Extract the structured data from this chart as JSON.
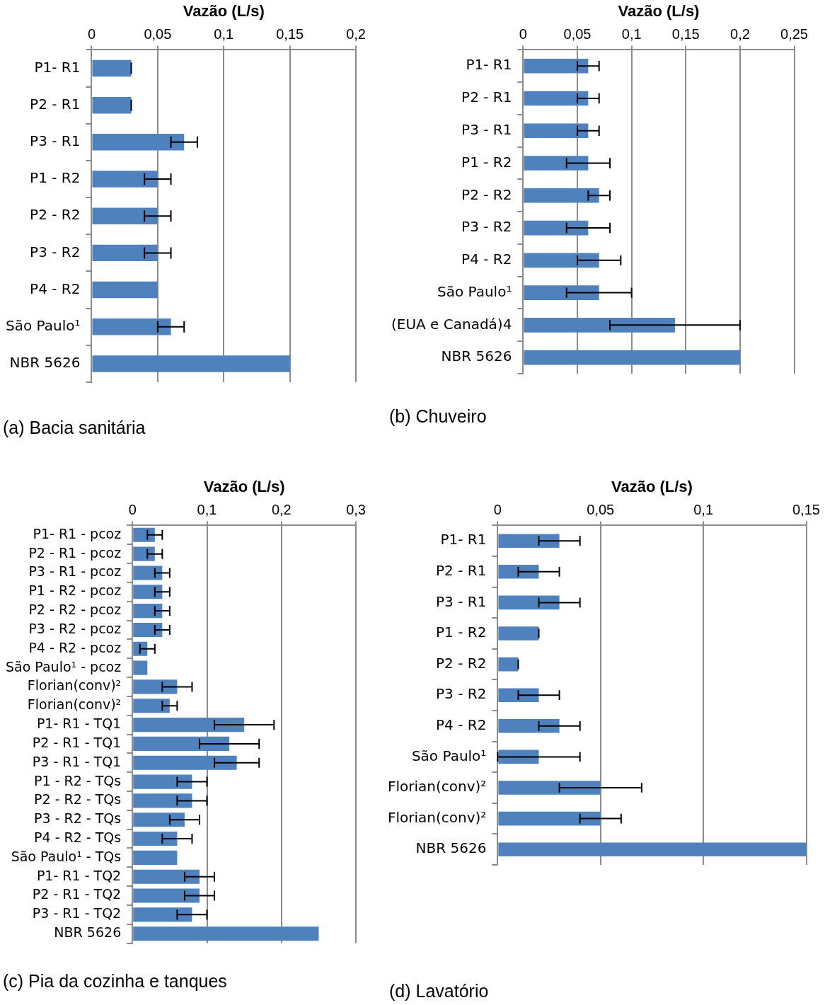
{
  "chart_data": [
    {
      "type": "bar",
      "orientation": "horizontal",
      "xlabel": "Vazão (L/s)",
      "annotations": [
        "(a) Bacia sanitária"
      ],
      "categories": [
        "P1- R1",
        "P2 - R1",
        "P3 - R1",
        "P1 - R2",
        "P2 - R2",
        "P3 - R2",
        "P4 - R2",
        "São Paulo¹",
        "NBR 5626"
      ],
      "values": [
        0.03,
        0.03,
        0.07,
        0.05,
        0.05,
        0.05,
        0.05,
        0.06,
        0.15
      ],
      "errors": [
        0,
        0,
        0.01,
        0.01,
        0.01,
        0.01,
        null,
        0.01,
        null
      ],
      "color": "#4f81bd",
      "xlim": [
        0,
        0.2
      ],
      "xticks": [
        {
          "value": 0,
          "label": "0"
        },
        {
          "value": 0.05,
          "label": "0,05"
        },
        {
          "value": 0.1,
          "label": "0,1"
        },
        {
          "value": 0.15,
          "label": "0,15"
        },
        {
          "value": 0.2,
          "label": "0,2"
        }
      ],
      "grid": "x",
      "legend": false
    },
    {
      "type": "bar",
      "orientation": "horizontal",
      "xlabel": "Vazão (L/s)",
      "annotations": [
        "(b) Chuveiro"
      ],
      "categories": [
        "P1- R1",
        "P2 - R1",
        "P3 - R1",
        "P1 - R2",
        "P2 - R2",
        "P3 - R2",
        "P4 - R2",
        "São Paulo¹",
        "(EUA e Canadá)4",
        "NBR 5626"
      ],
      "values": [
        0.06,
        0.06,
        0.06,
        0.06,
        0.07,
        0.06,
        0.07,
        0.07,
        0.14,
        0.2
      ],
      "errors": [
        0.01,
        0.01,
        0.01,
        0.02,
        0.01,
        0.02,
        0.02,
        0.03,
        0.06,
        null
      ],
      "color": "#4f81bd",
      "xlim": [
        0,
        0.25
      ],
      "xticks": [
        {
          "value": 0,
          "label": "0"
        },
        {
          "value": 0.05,
          "label": "0,05"
        },
        {
          "value": 0.1,
          "label": "0,1"
        },
        {
          "value": 0.15,
          "label": "0,15"
        },
        {
          "value": 0.2,
          "label": "0,2"
        },
        {
          "value": 0.25,
          "label": "0,25"
        }
      ],
      "grid": "x",
      "legend": false
    },
    {
      "type": "bar",
      "orientation": "horizontal",
      "xlabel": "Vazão (L/s)",
      "annotations": [
        "(c) Pia da cozinha e tanques"
      ],
      "categories": [
        "P1- R1 - pcoz",
        "P2 - R1 - pcoz",
        "P3 - R1 - pcoz",
        "P1 - R2 - pcoz",
        "P2 - R2 - pcoz",
        "P3 - R2 - pcoz",
        "P4 - R2 - pcoz",
        "São Paulo¹ - pcoz",
        "Florian(conv)²",
        "Florian(conv)²",
        "P1- R1 - TQ1",
        "P2 - R1 - TQ1",
        "P3 - R1 - TQ1",
        "P1 - R2 - TQs",
        "P2 - R2 - TQs",
        "P3 - R2 - TQs",
        "P4 - R2 - TQs",
        "São Paulo¹ - TQs",
        "P1- R1 - TQ2",
        "P2 - R1 - TQ2",
        "P3 - R1 - TQ2",
        "NBR 5626"
      ],
      "values": [
        0.03,
        0.03,
        0.04,
        0.04,
        0.04,
        0.04,
        0.02,
        0.02,
        0.06,
        0.05,
        0.15,
        0.13,
        0.14,
        0.08,
        0.08,
        0.07,
        0.06,
        0.06,
        0.09,
        0.09,
        0.08,
        0.25
      ],
      "errors": [
        0.01,
        0.01,
        0.01,
        0.01,
        0.01,
        0.01,
        0.01,
        null,
        0.02,
        0.01,
        0.04,
        0.04,
        0.03,
        0.02,
        0.02,
        0.02,
        0.02,
        null,
        0.02,
        0.02,
        0.02,
        null
      ],
      "color": "#4f81bd",
      "xlim": [
        0,
        0.3
      ],
      "xticks": [
        {
          "value": 0,
          "label": "0"
        },
        {
          "value": 0.1,
          "label": "0,1"
        },
        {
          "value": 0.2,
          "label": "0,2"
        },
        {
          "value": 0.3,
          "label": "0,3"
        }
      ],
      "grid": "x",
      "legend": false
    },
    {
      "type": "bar",
      "orientation": "horizontal",
      "xlabel": "Vazão (L/s)",
      "annotations": [
        "(d) Lavatório"
      ],
      "categories": [
        "P1- R1",
        "P2 - R1",
        "P3 - R1",
        "P1 - R2",
        "P2 - R2",
        "P3 - R2",
        "P4 - R2",
        "São Paulo¹",
        "Florian(conv)²",
        "Florian(conv)²",
        "NBR 5626"
      ],
      "values": [
        0.03,
        0.02,
        0.03,
        0.02,
        0.01,
        0.02,
        0.03,
        0.02,
        0.05,
        0.05,
        0.15
      ],
      "errors": [
        0.01,
        0.01,
        0.01,
        0,
        0,
        0.01,
        0.01,
        0.02,
        0.02,
        0.01,
        null
      ],
      "color": "#4f81bd",
      "xlim": [
        0,
        0.15
      ],
      "xticks": [
        {
          "value": 0,
          "label": "0"
        },
        {
          "value": 0.05,
          "label": "0,05"
        },
        {
          "value": 0.1,
          "label": "0,1"
        },
        {
          "value": 0.15,
          "label": "0,15"
        }
      ],
      "grid": "x",
      "legend": false
    }
  ]
}
